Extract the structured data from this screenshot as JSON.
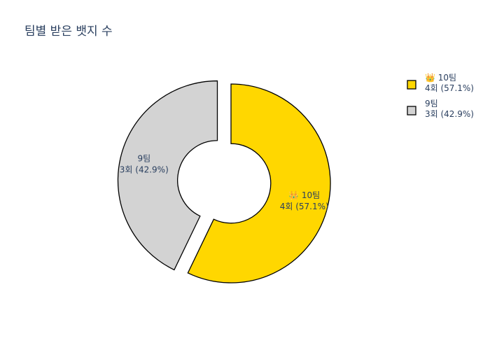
{
  "chart_data": {
    "type": "pie",
    "title": "팀별 받은 뱃지 수",
    "hole": 0.4,
    "legend_position": "top-right",
    "slices": [
      {
        "name": "👑 10팀",
        "count_text": "4회 (57.1%)",
        "value": 4,
        "percent": 57.1,
        "color": "#FFD700",
        "pulled": false
      },
      {
        "name": "9팀",
        "count_text": "3회 (42.9%)",
        "value": 3,
        "percent": 42.9,
        "color": "#D3D3D3",
        "pulled": true
      }
    ]
  }
}
